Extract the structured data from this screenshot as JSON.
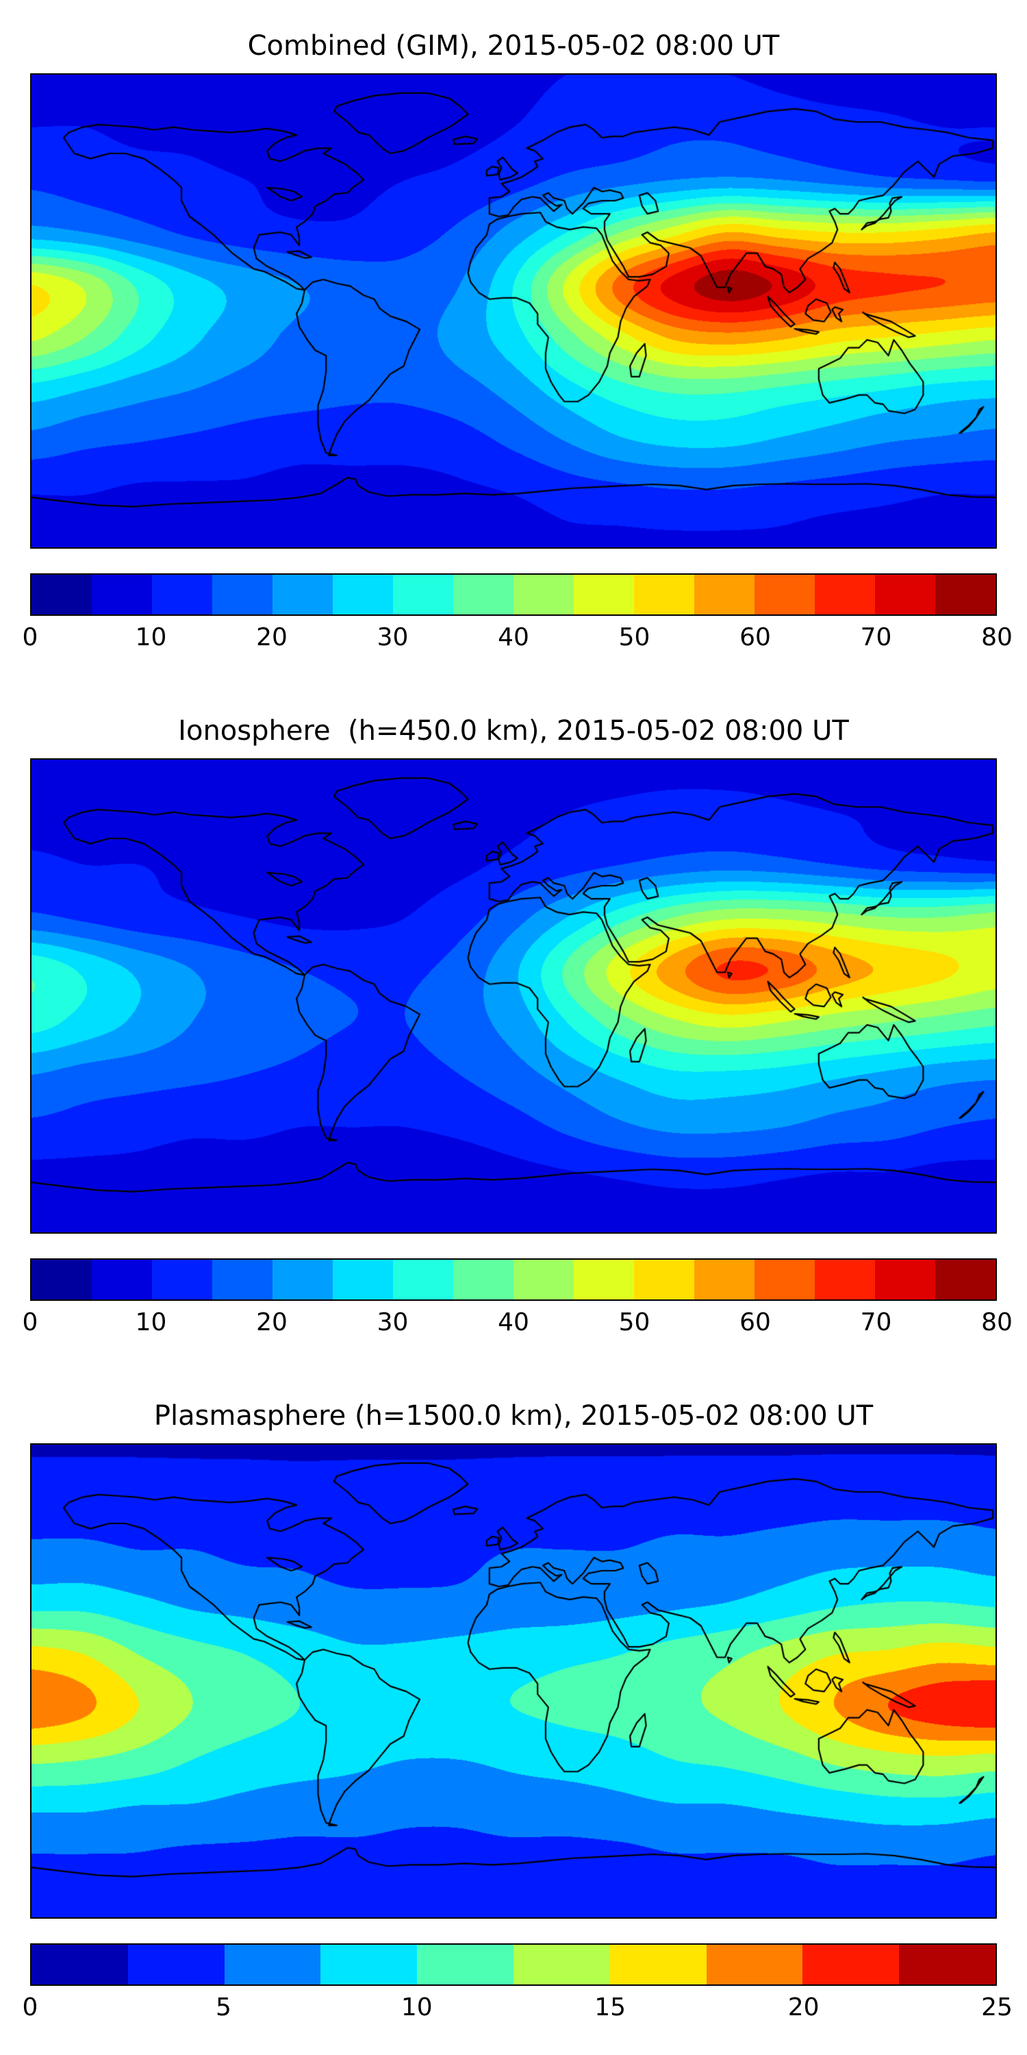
{
  "figure": {
    "background": "#ffffff",
    "colormap": "jet",
    "n_panels": 3
  },
  "chart_data": [
    {
      "type": "heatmap",
      "title": "Combined (GIM), 2015-05-02 08:00 UT",
      "projection": "equirectangular-world-map-with-coastlines",
      "colormap": "jet",
      "colorbar_orientation": "horizontal",
      "zlim": [
        0,
        80
      ],
      "level_step": 5,
      "colorbar_ticks": [
        0,
        10,
        20,
        30,
        40,
        50,
        60,
        70,
        80
      ],
      "x_lon": [
        -180,
        -160,
        -140,
        -120,
        -100,
        -80,
        -60,
        -40,
        -20,
        0,
        20,
        40,
        60,
        80,
        100,
        120,
        140,
        160,
        180
      ],
      "y_lat": [
        90,
        70,
        50,
        30,
        10,
        -10,
        -30,
        -50,
        -70,
        -90
      ],
      "values": [
        [
          8,
          8,
          8,
          8,
          8,
          8,
          8,
          8,
          8,
          9,
          10,
          10,
          10,
          10,
          9,
          8,
          8,
          8,
          8
        ],
        [
          10,
          10,
          9,
          9,
          8,
          8,
          8,
          8,
          9,
          10,
          12,
          13,
          14,
          14,
          13,
          12,
          11,
          10,
          10
        ],
        [
          14,
          13,
          12,
          11,
          10,
          9,
          9,
          10,
          11,
          13,
          16,
          18,
          20,
          21,
          20,
          18,
          16,
          15,
          14
        ],
        [
          22,
          20,
          17,
          14,
          12,
          11,
          11,
          13,
          16,
          22,
          30,
          40,
          48,
          55,
          52,
          50,
          50,
          52,
          55
        ],
        [
          50,
          44,
          34,
          27,
          23,
          20,
          18,
          17,
          20,
          30,
          46,
          62,
          72,
          78,
          74,
          68,
          66,
          65,
          64
        ],
        [
          46,
          40,
          32,
          26,
          22,
          19,
          18,
          18,
          22,
          28,
          38,
          48,
          56,
          58,
          56,
          52,
          50,
          48,
          46
        ],
        [
          28,
          25,
          22,
          20,
          18,
          17,
          16,
          16,
          18,
          22,
          28,
          33,
          36,
          36,
          34,
          32,
          30,
          28,
          27
        ],
        [
          18,
          16,
          15,
          14,
          13,
          12,
          12,
          12,
          13,
          16,
          20,
          24,
          26,
          26,
          24,
          22,
          20,
          19,
          18
        ],
        [
          10,
          10,
          9,
          9,
          9,
          8,
          8,
          8,
          9,
          10,
          12,
          13,
          14,
          14,
          13,
          12,
          11,
          10,
          10
        ],
        [
          8,
          8,
          8,
          8,
          8,
          8,
          8,
          8,
          8,
          8,
          9,
          9,
          9,
          9,
          9,
          8,
          8,
          8,
          8
        ]
      ]
    },
    {
      "type": "heatmap",
      "title": "Ionosphere  (h=450.0 km), 2015-05-02 08:00 UT",
      "projection": "equirectangular-world-map-with-coastlines",
      "colormap": "jet",
      "colorbar_orientation": "horizontal",
      "zlim": [
        0,
        80
      ],
      "level_step": 5,
      "colorbar_ticks": [
        0,
        10,
        20,
        30,
        40,
        50,
        60,
        70,
        80
      ],
      "x_lon": [
        -180,
        -160,
        -140,
        -120,
        -100,
        -80,
        -60,
        -40,
        -20,
        0,
        20,
        40,
        60,
        80,
        100,
        120,
        140,
        160,
        180
      ],
      "y_lat": [
        90,
        70,
        50,
        30,
        10,
        -10,
        -30,
        -50,
        -70,
        -90
      ],
      "values": [
        [
          6,
          6,
          6,
          6,
          6,
          6,
          6,
          6,
          6,
          7,
          8,
          8,
          8,
          8,
          8,
          7,
          6,
          6,
          6
        ],
        [
          8,
          8,
          8,
          7,
          7,
          7,
          7,
          7,
          8,
          9,
          10,
          11,
          12,
          12,
          11,
          10,
          9,
          8,
          8
        ],
        [
          11,
          10,
          10,
          9,
          8,
          8,
          8,
          8,
          9,
          11,
          13,
          15,
          17,
          18,
          17,
          15,
          13,
          12,
          11
        ],
        [
          16,
          14,
          12,
          11,
          10,
          9,
          9,
          10,
          13,
          18,
          25,
          33,
          40,
          44,
          44,
          42,
          40,
          40,
          42
        ],
        [
          34,
          29,
          24,
          20,
          17,
          15,
          14,
          14,
          17,
          24,
          36,
          48,
          58,
          66,
          64,
          58,
          54,
          51,
          48
        ],
        [
          32,
          28,
          24,
          20,
          18,
          16,
          15,
          15,
          18,
          22,
          30,
          38,
          44,
          47,
          45,
          42,
          40,
          38,
          36
        ],
        [
          20,
          18,
          17,
          16,
          15,
          14,
          13,
          13,
          15,
          18,
          22,
          26,
          29,
          29,
          28,
          26,
          24,
          22,
          21
        ],
        [
          14,
          13,
          12,
          11,
          11,
          10,
          10,
          10,
          11,
          13,
          16,
          19,
          21,
          21,
          20,
          18,
          17,
          15,
          14
        ],
        [
          8,
          8,
          8,
          7,
          7,
          7,
          7,
          7,
          7,
          8,
          9,
          10,
          11,
          11,
          10,
          9,
          9,
          8,
          8
        ],
        [
          6,
          6,
          6,
          6,
          6,
          6,
          6,
          6,
          6,
          6,
          7,
          7,
          7,
          7,
          7,
          6,
          6,
          6,
          6
        ]
      ]
    },
    {
      "type": "heatmap",
      "title": "Plasmasphere (h=1500.0 km), 2015-05-02 08:00 UT",
      "projection": "equirectangular-world-map-with-coastlines",
      "colormap": "jet",
      "colorbar_orientation": "horizontal",
      "zlim": [
        0,
        25
      ],
      "level_step": 2.5,
      "colorbar_ticks": [
        0,
        5,
        10,
        15,
        20,
        25
      ],
      "x_lon": [
        -180,
        -160,
        -140,
        -120,
        -100,
        -80,
        -60,
        -40,
        -20,
        0,
        20,
        40,
        60,
        80,
        100,
        120,
        140,
        160,
        180
      ],
      "y_lat": [
        90,
        70,
        50,
        30,
        10,
        -10,
        -30,
        -50,
        -70,
        -90
      ],
      "values": [
        [
          2.3,
          2.3,
          2.3,
          2.3,
          2.3,
          2.3,
          2.3,
          2.3,
          2.3,
          2.3,
          2.3,
          2.3,
          2.3,
          2.3,
          2.3,
          2.3,
          2.3,
          2.3,
          2.3
        ],
        [
          3.6,
          3.6,
          3.5,
          3.4,
          3.3,
          3.2,
          3.2,
          3.2,
          3.3,
          3.5,
          3.6,
          3.6,
          3.7,
          3.7,
          3.8,
          4,
          4,
          4,
          3.8
        ],
        [
          5.5,
          5.5,
          5,
          5,
          4.5,
          4.5,
          4,
          4,
          4.5,
          5,
          5,
          5,
          5.5,
          5.5,
          6,
          6.5,
          6.5,
          6.5,
          6
        ],
        [
          9,
          9,
          8,
          7,
          6.5,
          6,
          5.5,
          5.5,
          5.5,
          6,
          6,
          6.5,
          7,
          7.5,
          8.5,
          9.5,
          10,
          10,
          9.5
        ],
        [
          16,
          15,
          12.5,
          11,
          10,
          9,
          8,
          8,
          8.5,
          9,
          9.5,
          10,
          11,
          12,
          13.5,
          15,
          15.5,
          16.5,
          16
        ],
        [
          19.5,
          18,
          15,
          12.5,
          11,
          10,
          9.5,
          9,
          9.5,
          10,
          10.5,
          11,
          12,
          13,
          15,
          17.5,
          20,
          21.5,
          22.3
        ],
        [
          13,
          12.5,
          11.5,
          10,
          9,
          8.5,
          8,
          7.5,
          7.5,
          8,
          8.5,
          9,
          10,
          10.5,
          11.5,
          13,
          14,
          14.5,
          14
        ],
        [
          7.5,
          7.5,
          7,
          7,
          6.5,
          6,
          6,
          5.5,
          5.5,
          6,
          6,
          6.5,
          7,
          7,
          7.5,
          8,
          8.5,
          8.5,
          8
        ],
        [
          4.5,
          4.5,
          4.5,
          4,
          4,
          4,
          4,
          4,
          4,
          4,
          4,
          4,
          4.5,
          4.5,
          4.5,
          5,
          5,
          5,
          4.5
        ],
        [
          2.8,
          2.8,
          2.8,
          2.8,
          2.8,
          2.8,
          2.8,
          2.8,
          2.8,
          2.8,
          2.8,
          2.8,
          2.8,
          2.8,
          2.8,
          2.8,
          2.8,
          2.8,
          2.8
        ]
      ]
    }
  ]
}
